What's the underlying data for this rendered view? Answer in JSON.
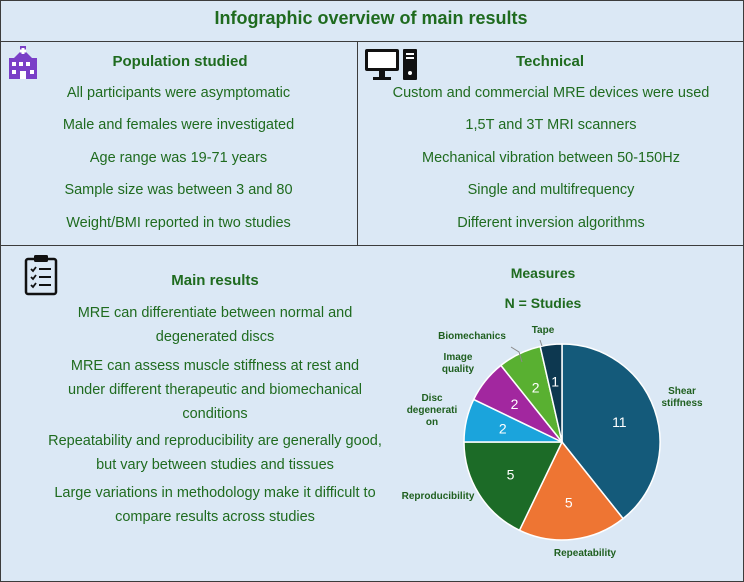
{
  "title": "Infographic overview of main results",
  "population": {
    "heading": "Population studied",
    "icon": "hospital-icon",
    "items": [
      "All participants were asymptomatic",
      "Male and females were investigated",
      "Age range was 19-71 years",
      "Sample size was between 3 and 80",
      "Weight/BMI reported in two studies"
    ]
  },
  "technical": {
    "heading": "Technical",
    "icon": "computer-icon",
    "items": [
      "Custom and commercial MRE devices were used",
      "1,5T and 3T MRI scanners",
      "Mechanical vibration between 50-150Hz",
      "Single and multifrequency",
      "Different inversion algorithms"
    ]
  },
  "main_results": {
    "heading": "Main results",
    "icon": "clipboard-checklist-icon",
    "items": [
      "MRE can differentiate between normal and degenerated discs",
      "MRE can assess muscle stiffness at rest and under different therapeutic and biomechanical conditions",
      "Repeatability and reproducibility are generally good, but vary between studies and tissues",
      "Large variations in methodology make it difficult to compare results across studies"
    ]
  },
  "colors": {
    "text_green": "#1f6b1f",
    "background": "#dbe8f5"
  },
  "chart_data": {
    "type": "pie",
    "title": "Measures",
    "subtitle": "N = Studies",
    "categories": [
      "Shear stiffness",
      "Repeatability",
      "Reproducibility",
      "Disc degeneration",
      "Image quality",
      "Biomechanics",
      "Tape"
    ],
    "category_labels": [
      "Shear\nstiffness",
      "Repeatability",
      "Reproducibility",
      "Disc\ndegenerati\non",
      "Image\nquality",
      "Biomechanics",
      "Tape"
    ],
    "values": [
      11,
      5,
      5,
      2,
      2,
      2,
      1
    ],
    "colors": [
      "#145a7a",
      "#ee7533",
      "#1c6b27",
      "#1ba4dc",
      "#a2279f",
      "#59b031",
      "#0d3850"
    ]
  }
}
